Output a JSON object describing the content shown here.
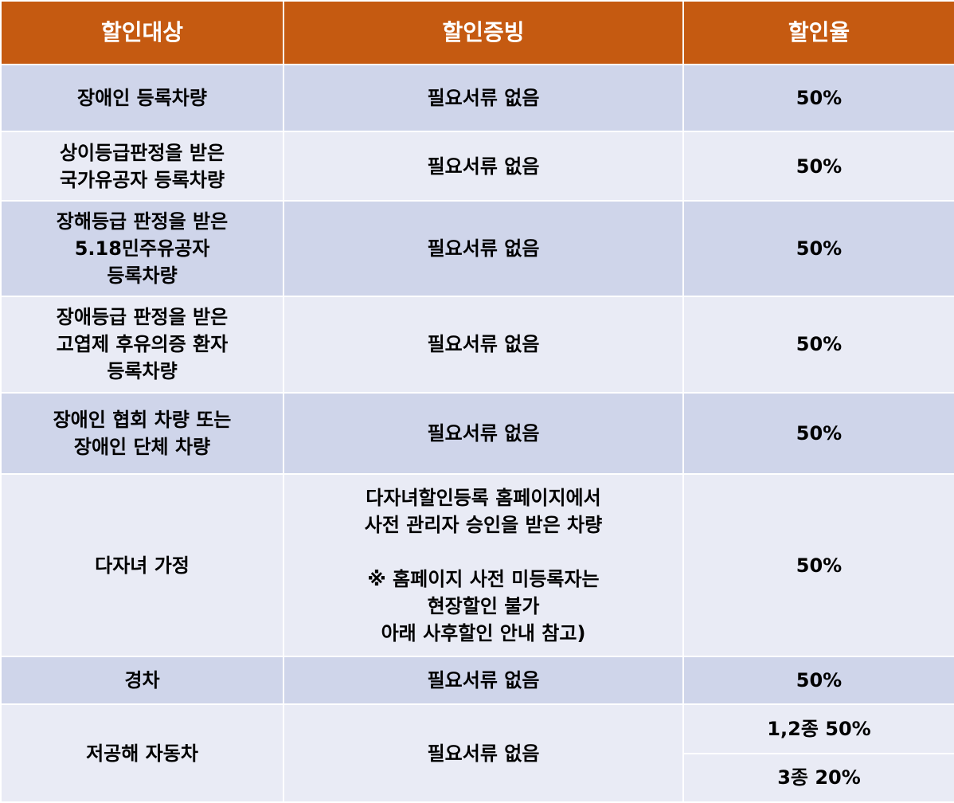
{
  "header": {
    "target": "할인대상",
    "proof": "할인증빙",
    "rate": "할인율"
  },
  "rows": [
    {
      "target": "장애인 등록차량",
      "proof": "필요서류 없음",
      "rate": "50%"
    },
    {
      "target": "상이등급판정을 받은\n국가유공자 등록차량",
      "proof": "필요서류 없음",
      "rate": "50%"
    },
    {
      "target": "장해등급 판정을 받은\n5.18민주유공자\n등록차량",
      "proof": "필요서류 없음",
      "rate": "50%"
    },
    {
      "target": "장애등급 판정을 받은\n고엽제 후유의증 환자\n등록차량",
      "proof": "필요서류 없음",
      "rate": "50%"
    },
    {
      "target": "장애인 협회 차량 또는\n장애인 단체 차량",
      "proof": "필요서류 없음",
      "rate": "50%"
    },
    {
      "target": "다자녀 가정",
      "proof": "다자녀할인등록 홈페이지에서\n사전 관리자 승인을 받은 차량\n\n※ 홈페이지 사전 미등록자는\n현장할인 불가\n아래 사후할인 안내 참고)",
      "rate": "50%"
    },
    {
      "target": "경차",
      "proof": "필요서류 없음",
      "rate": "50%"
    },
    {
      "target": "저공해 자동차",
      "proof": "필요서류 없음",
      "rate_1": "1,2종 50%",
      "rate_2": "3종 20%"
    }
  ]
}
